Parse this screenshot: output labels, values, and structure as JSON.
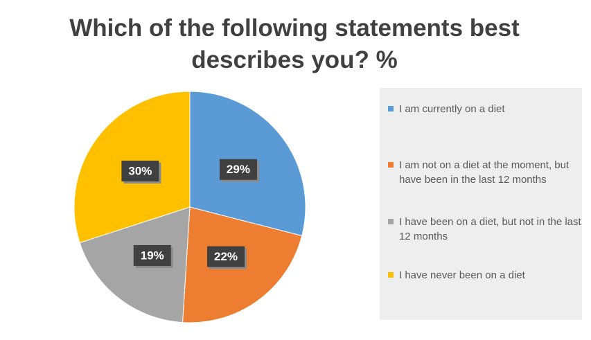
{
  "chart_data": {
    "type": "pie",
    "title": "Which of the following statements best describes you? %",
    "categories": [
      "I am currently on a diet",
      "I am not on a diet at the moment, but have been in the last 12 months",
      "I have been on a diet, but not in the last 12 months",
      "I have never been on a diet"
    ],
    "values": [
      29,
      22,
      19,
      30
    ],
    "value_labels": [
      "29%",
      "22%",
      "19%",
      "30%"
    ],
    "colors": [
      "#5b9bd5",
      "#ed7d31",
      "#a5a5a5",
      "#ffc000"
    ],
    "legend": "right"
  }
}
